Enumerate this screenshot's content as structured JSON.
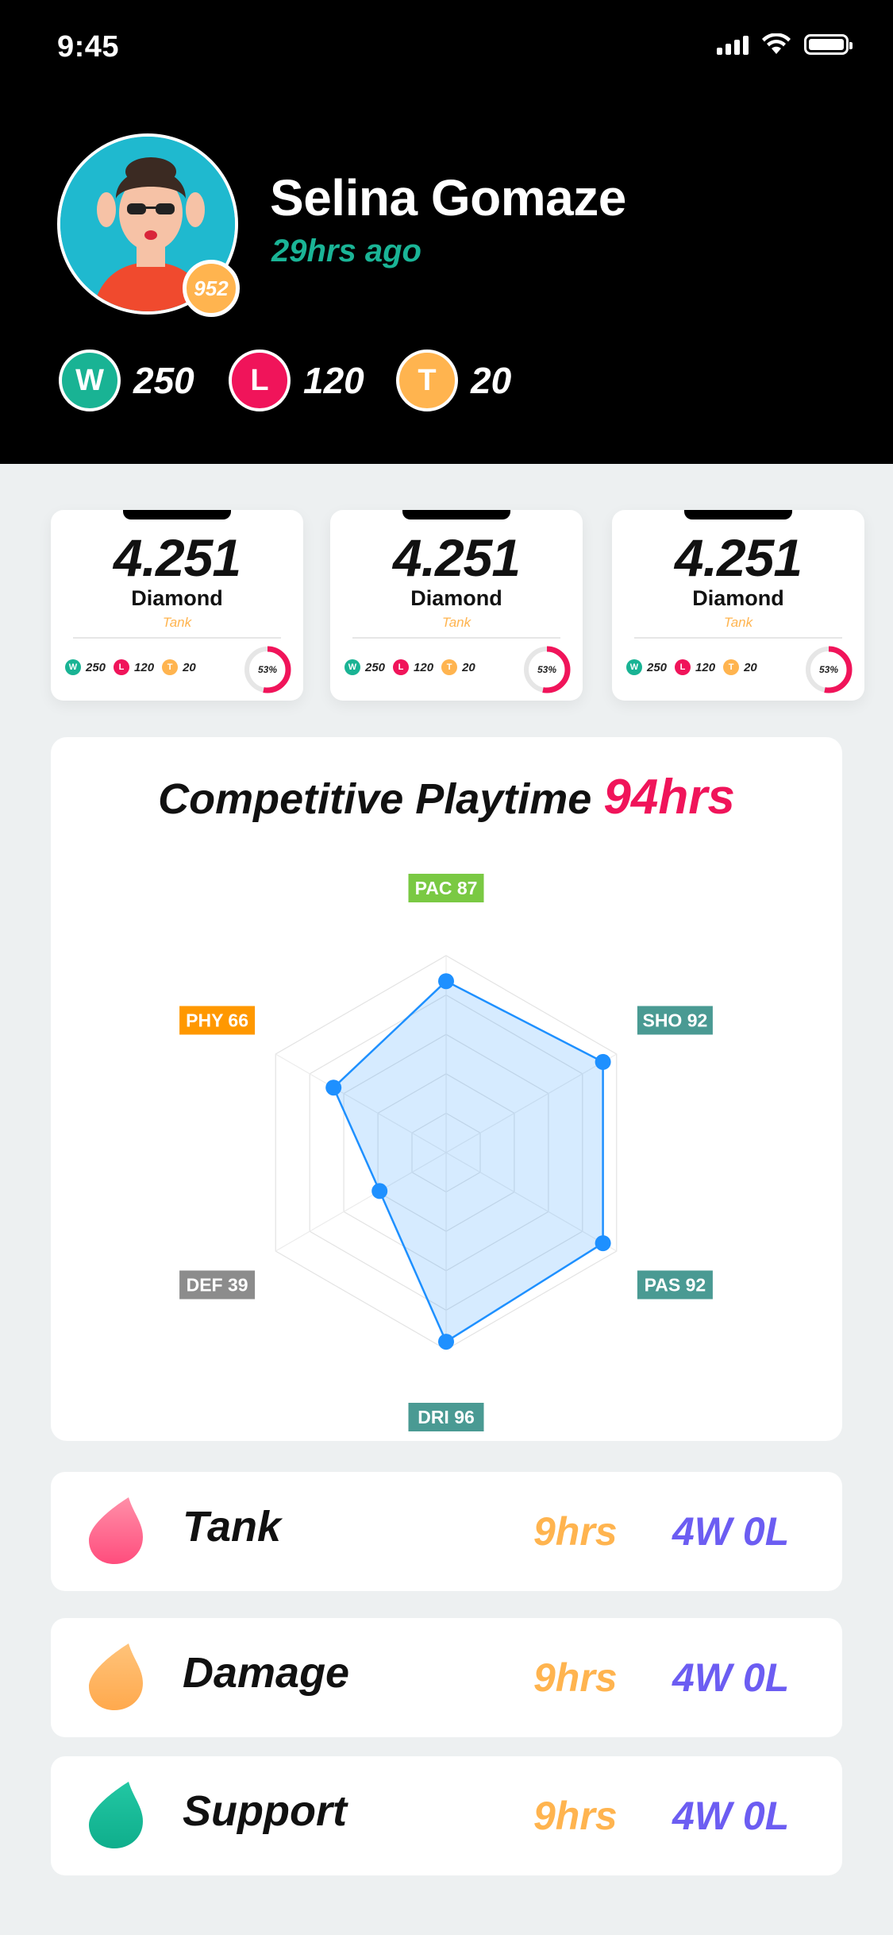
{
  "status_bar": {
    "time": "9:45"
  },
  "profile": {
    "name": "Selina Gomaze",
    "last_seen": "29hrs ago",
    "level": "952",
    "record": [
      {
        "letter": "W",
        "value": "250",
        "color": "#19b394"
      },
      {
        "letter": "L",
        "value": "120",
        "color": "#f0145a"
      },
      {
        "letter": "T",
        "value": "20",
        "color": "#ffb44f"
      }
    ]
  },
  "cards": [
    {
      "value": "4.251",
      "rank": "Diamond",
      "role": "Tank",
      "w": "250",
      "l": "120",
      "t": "20",
      "percent": "53%",
      "percent_value": 53
    },
    {
      "value": "4.251",
      "rank": "Diamond",
      "role": "Tank",
      "w": "250",
      "l": "120",
      "t": "20",
      "percent": "53%",
      "percent_value": 53
    },
    {
      "value": "4.251",
      "rank": "Diamond",
      "role": "Tank",
      "w": "250",
      "l": "120",
      "t": "20",
      "percent": "53%",
      "percent_value": 53
    }
  ],
  "playtime": {
    "title": "Competitive Playtime",
    "hours": "94hrs"
  },
  "chart_data": {
    "type": "radar",
    "axes": [
      {
        "label": "PAC 87",
        "value": 87,
        "color": "#7ac943"
      },
      {
        "label": "SHO 92",
        "value": 92,
        "color": "#4a9a93"
      },
      {
        "label": "PAS 92",
        "value": 92,
        "color": "#4a9a93"
      },
      {
        "label": "DRI 96",
        "value": 96,
        "color": "#4a9a93"
      },
      {
        "label": "DEF 39",
        "value": 39,
        "color": "#8c8c8c"
      },
      {
        "label": "PHY 66",
        "value": 66,
        "color": "#ff9800"
      }
    ],
    "max": 100,
    "series_color": "#1e90ff"
  },
  "roles": [
    {
      "name": "Tank",
      "hours": "9hrs",
      "record": "4W 0L",
      "icon": "tank-drop-icon",
      "color_a": "#ff4d7d",
      "color_b": "#ff8fa8"
    },
    {
      "name": "Damage",
      "hours": "9hrs",
      "record": "4W 0L",
      "icon": "damage-drop-icon",
      "color_a": "#ffa94d",
      "color_b": "#ffc37a"
    },
    {
      "name": "Support",
      "hours": "9hrs",
      "record": "4W 0L",
      "icon": "support-drop-icon",
      "color_a": "#0fae8c",
      "color_b": "#22c7a3"
    }
  ]
}
